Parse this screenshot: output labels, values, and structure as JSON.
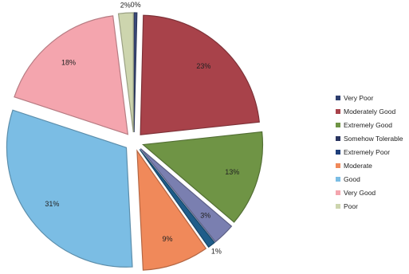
{
  "chart_data": {
    "type": "pie",
    "exploded": true,
    "legend_position": "right",
    "slices": [
      {
        "name": "Very Poor",
        "value": 0,
        "label": "0%",
        "color": "#3b4a7a"
      },
      {
        "name": "Moderately Good",
        "value": 23,
        "label": "23%",
        "color": "#a8424a"
      },
      {
        "name": "Extremely Good",
        "value": 13,
        "label": "13%",
        "color": "#6f9445"
      },
      {
        "name": "Somehow Tolerable",
        "value": 3,
        "label": "3%",
        "color": "#7a7fb0"
      },
      {
        "name": "Extremely Poor",
        "value": 1,
        "label": "1%",
        "color": "#1f5d8a"
      },
      {
        "name": "Moderate",
        "value": 9,
        "label": "9%",
        "color": "#f0895a"
      },
      {
        "name": "Good",
        "value": 31,
        "label": "31%",
        "color": "#7bbde4"
      },
      {
        "name": "Very Good",
        "value": 18,
        "label": "18%",
        "color": "#f4a5ae"
      },
      {
        "name": "Poor",
        "value": 2,
        "label": "2%",
        "color": "#cdd5ae"
      }
    ],
    "legend": [
      {
        "label": "Very Poor",
        "color": "#2e3f6e"
      },
      {
        "label": "Moderately Good",
        "color": "#a8424a"
      },
      {
        "label": "Extremely Good",
        "color": "#6f9445"
      },
      {
        "label": "Somehow Tolerable",
        "color": "#2a3560"
      },
      {
        "label": "Extremely Poor",
        "color": "#1f3f7a"
      },
      {
        "label": "Moderate",
        "color": "#f0895a"
      },
      {
        "label": "Good",
        "color": "#7bbde4"
      },
      {
        "label": "Very Good",
        "color": "#f4a5ae"
      },
      {
        "label": "Poor",
        "color": "#cdd5ae"
      }
    ]
  }
}
